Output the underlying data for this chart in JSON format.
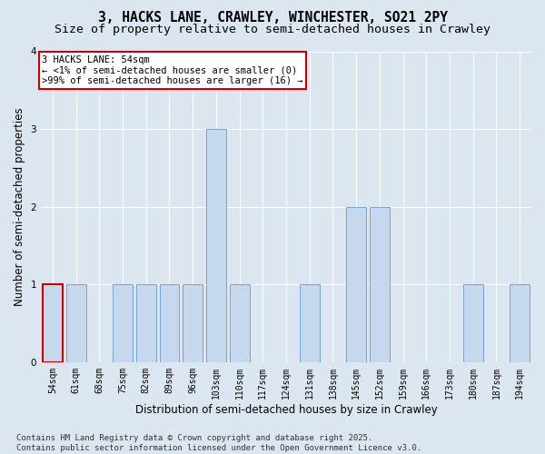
{
  "title_line1": "3, HACKS LANE, CRAWLEY, WINCHESTER, SO21 2PY",
  "title_line2": "Size of property relative to semi-detached houses in Crawley",
  "xlabel": "Distribution of semi-detached houses by size in Crawley",
  "ylabel": "Number of semi-detached properties",
  "footer": "Contains HM Land Registry data © Crown copyright and database right 2025.\nContains public sector information licensed under the Open Government Licence v3.0.",
  "categories": [
    "54sqm",
    "61sqm",
    "68sqm",
    "75sqm",
    "82sqm",
    "89sqm",
    "96sqm",
    "103sqm",
    "110sqm",
    "117sqm",
    "124sqm",
    "131sqm",
    "138sqm",
    "145sqm",
    "152sqm",
    "159sqm",
    "166sqm",
    "173sqm",
    "180sqm",
    "187sqm",
    "194sqm"
  ],
  "values": [
    1,
    1,
    0,
    1,
    1,
    1,
    1,
    3,
    1,
    0,
    0,
    1,
    0,
    2,
    2,
    0,
    0,
    0,
    1,
    0,
    1
  ],
  "bar_color": "#c5d8ee",
  "bar_edge_color": "#6699cc",
  "highlight_index": 0,
  "highlight_edge_color": "#cc0000",
  "annotation_text": "3 HACKS LANE: 54sqm\n← <1% of semi-detached houses are smaller (0)\n>99% of semi-detached houses are larger (16) →",
  "annotation_box_color": "#ffffff",
  "annotation_box_edge": "#cc0000",
  "ylim": [
    0,
    4
  ],
  "yticks": [
    0,
    1,
    2,
    3,
    4
  ],
  "bg_color": "#dce6f1",
  "plot_bg_color": "#dce6f1",
  "title_fontsize": 10.5,
  "subtitle_fontsize": 9.5,
  "tick_fontsize": 7,
  "label_fontsize": 8.5,
  "footer_fontsize": 6.5,
  "annotation_fontsize": 7.5
}
